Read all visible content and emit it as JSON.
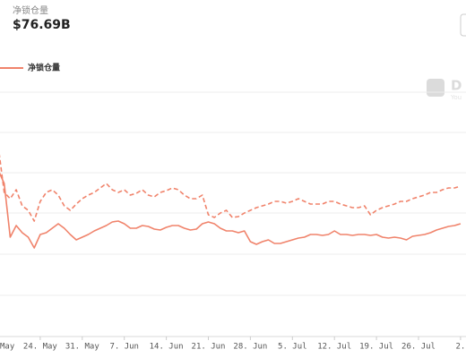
{
  "header": {
    "label": "净锁仓量",
    "value": "$76.69B"
  },
  "watermark": {
    "mark": "D",
    "sub": "You"
  },
  "chart_data": {
    "type": "line",
    "categories": [
      "May",
      null,
      null,
      null,
      null,
      null,
      null,
      "24. May",
      null,
      null,
      null,
      null,
      null,
      null,
      "31. May",
      null,
      null,
      null,
      null,
      null,
      null,
      "7. Jun",
      null,
      null,
      null,
      null,
      null,
      null,
      "14. Jun",
      null,
      null,
      null,
      null,
      null,
      null,
      "21. Jun",
      null,
      null,
      null,
      null,
      null,
      null,
      "28. Jun",
      null,
      null,
      null,
      null,
      null,
      null,
      "5. Jul",
      null,
      null,
      null,
      null,
      null,
      null,
      "12. Jul",
      null,
      null,
      null,
      null,
      null,
      null,
      "19. Jul",
      null,
      null,
      null,
      null,
      null,
      null,
      "26. Jul",
      null,
      null,
      null,
      null,
      null,
      null,
      "2."
    ],
    "series": [
      {
        "name": "净锁仓量",
        "color": "#f0836b",
        "style": "solid",
        "values": [
          185,
          170,
          110,
          123,
          115,
          110,
          98,
          113,
          115,
          120,
          125,
          120,
          113,
          107,
          110,
          113,
          117,
          120,
          123,
          127,
          128,
          125,
          120,
          120,
          123,
          122,
          119,
          118,
          121,
          123,
          123,
          120,
          118,
          119,
          125,
          127,
          125,
          120,
          117,
          117,
          115,
          117,
          105,
          102,
          105,
          107,
          103,
          103,
          105,
          107,
          109,
          110,
          113,
          113,
          112,
          113,
          117,
          113,
          113,
          112,
          113,
          113,
          112,
          113,
          110,
          109,
          110,
          109,
          107,
          111,
          112,
          113,
          115,
          118,
          120,
          122,
          123,
          125
        ]
      },
      {
        "color": "#f0836b",
        "style": "dashed",
        "values": [
          212,
          160,
          153,
          163,
          145,
          140,
          128,
          150,
          160,
          163,
          157,
          145,
          140,
          147,
          153,
          157,
          160,
          165,
          170,
          163,
          160,
          163,
          157,
          159,
          163,
          157,
          155,
          160,
          162,
          165,
          163,
          157,
          153,
          153,
          157,
          135,
          132,
          137,
          140,
          132,
          133,
          137,
          140,
          143,
          145,
          147,
          150,
          150,
          148,
          150,
          153,
          150,
          147,
          147,
          147,
          150,
          150,
          147,
          145,
          143,
          143,
          145,
          135,
          140,
          143,
          145,
          147,
          150,
          150,
          153,
          155,
          157,
          160,
          160,
          163,
          165,
          165,
          167
        ]
      }
    ],
    "ylim": [
      0,
      272
    ]
  }
}
